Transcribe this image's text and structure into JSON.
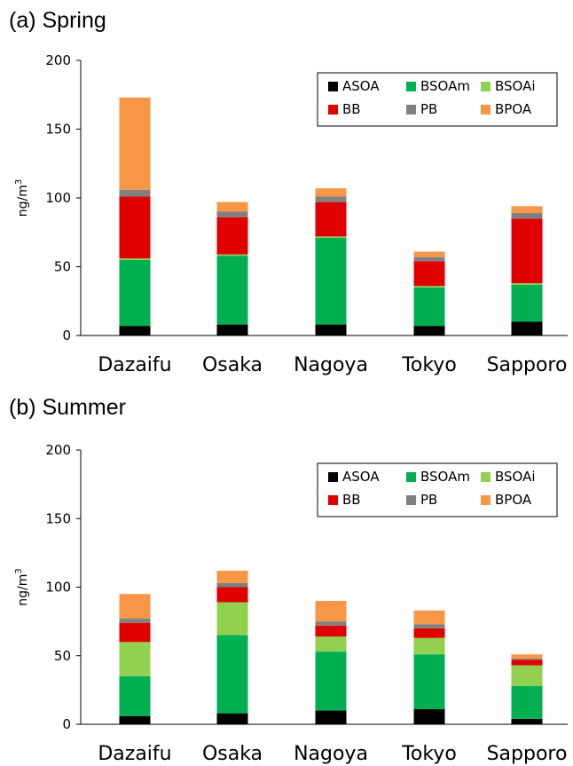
{
  "chart_data": [
    {
      "type": "bar",
      "stacked": true,
      "panel_title": "(a) Spring",
      "ylabel": "ng/m",
      "ylabel_sup": "3",
      "ylim": [
        0,
        200
      ],
      "yticks": [
        0,
        50,
        100,
        150,
        200
      ],
      "categories": [
        "Dazaifu",
        "Osaka",
        "Nagoya",
        "Tokyo",
        "Sapporo"
      ],
      "legend_position": "top-right",
      "series": [
        {
          "name": "ASOA",
          "color": "#000000",
          "values": [
            7,
            8,
            8,
            7,
            10
          ]
        },
        {
          "name": "BSOAm",
          "color": "#00b050",
          "values": [
            48,
            50,
            63,
            28,
            27
          ]
        },
        {
          "name": "BSOAi",
          "color": "#92d050",
          "values": [
            1,
            1,
            1,
            1,
            1
          ]
        },
        {
          "name": "BB",
          "color": "#e00000",
          "values": [
            45,
            27,
            25,
            18,
            47
          ]
        },
        {
          "name": "PB",
          "color": "#808080",
          "values": [
            5,
            4,
            4,
            3,
            4
          ]
        },
        {
          "name": "BPOA",
          "color": "#f79646",
          "values": [
            67,
            7,
            6,
            4,
            5
          ]
        }
      ]
    },
    {
      "type": "bar",
      "stacked": true,
      "panel_title": "(b) Summer",
      "ylabel": "ng/m",
      "ylabel_sup": "3",
      "ylim": [
        0,
        200
      ],
      "yticks": [
        0,
        50,
        100,
        150,
        200
      ],
      "categories": [
        "Dazaifu",
        "Osaka",
        "Nagoya",
        "Tokyo",
        "Sapporo"
      ],
      "legend_position": "top-right",
      "series": [
        {
          "name": "ASOA",
          "color": "#000000",
          "values": [
            6,
            8,
            10,
            11,
            4
          ]
        },
        {
          "name": "BSOAm",
          "color": "#00b050",
          "values": [
            29,
            57,
            43,
            40,
            24
          ]
        },
        {
          "name": "BSOAi",
          "color": "#92d050",
          "values": [
            25,
            24,
            11,
            12,
            15
          ]
        },
        {
          "name": "BB",
          "color": "#e00000",
          "values": [
            14,
            11,
            8,
            7,
            4
          ]
        },
        {
          "name": "PB",
          "color": "#808080",
          "values": [
            3,
            3,
            3,
            3,
            1
          ]
        },
        {
          "name": "BPOA",
          "color": "#f79646",
          "values": [
            18,
            9,
            15,
            10,
            3
          ]
        }
      ]
    }
  ]
}
